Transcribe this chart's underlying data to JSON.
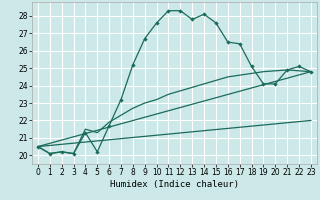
{
  "title": "",
  "xlabel": "Humidex (Indice chaleur)",
  "bg_color": "#cce8e8",
  "grid_color": "#ffffff",
  "line_color": "#1a6b5a",
  "xlim": [
    -0.5,
    23.5
  ],
  "ylim": [
    19.5,
    28.8
  ],
  "yticks": [
    20,
    21,
    22,
    23,
    24,
    25,
    26,
    27,
    28
  ],
  "xticks": [
    0,
    1,
    2,
    3,
    4,
    5,
    6,
    7,
    8,
    9,
    10,
    11,
    12,
    13,
    14,
    15,
    16,
    17,
    18,
    19,
    20,
    21,
    22,
    23
  ],
  "series1_x": [
    0,
    1,
    2,
    3,
    4,
    5,
    6,
    7,
    8,
    9,
    10,
    11,
    12,
    13,
    14,
    15,
    16,
    17,
    18,
    19,
    20,
    21,
    22,
    23
  ],
  "series1_y": [
    20.5,
    20.1,
    20.2,
    20.1,
    21.3,
    20.2,
    21.7,
    23.2,
    25.2,
    26.7,
    27.6,
    28.3,
    28.3,
    27.8,
    28.1,
    27.6,
    26.5,
    26.4,
    25.1,
    24.1,
    24.1,
    24.9,
    25.1,
    24.8
  ],
  "series2_x": [
    0,
    1,
    2,
    3,
    4,
    5,
    6,
    7,
    8,
    9,
    10,
    11,
    12,
    13,
    14,
    15,
    16,
    17,
    18,
    19,
    20,
    21,
    22,
    23
  ],
  "series2_y": [
    20.5,
    20.1,
    20.2,
    20.1,
    21.5,
    21.3,
    21.9,
    22.3,
    22.7,
    23.0,
    23.2,
    23.5,
    23.7,
    23.9,
    24.1,
    24.3,
    24.5,
    24.6,
    24.7,
    24.8,
    24.85,
    24.9,
    24.85,
    24.8
  ],
  "line1_x": [
    0,
    23
  ],
  "line1_y": [
    20.5,
    24.8
  ],
  "line2_x": [
    0,
    23
  ],
  "line2_y": [
    20.5,
    22.0
  ]
}
